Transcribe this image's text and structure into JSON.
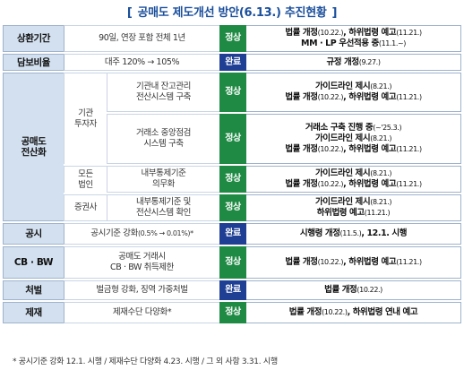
{
  "title": {
    "open_bracket": "[",
    "text": "공매도 제도개선 방안(6.13.) 추진현황",
    "close_bracket": "]"
  },
  "rows": {
    "r1": {
      "cat": "상환기간",
      "desc": "90일, 연장 포함 전체 1년",
      "status": "정상",
      "res_a": "법률 개정",
      "res_a_d": "(10.22.)",
      "res_a_sep": ", ",
      "res_b": "하위법령 예고",
      "res_b_d": "(11.21.)",
      "res_c": "MM · LP 우선적용 중",
      "res_c_d": "(11.1.~)"
    },
    "r2": {
      "cat": "담보비율",
      "desc": "대주 120% → 105%",
      "status": "완료",
      "res_a": "규정 개정",
      "res_a_d": "(9.27.)"
    },
    "r3": {
      "cat_l1": "공매도",
      "cat_l2": "전산화",
      "sub_l1": "기관",
      "sub_l2": "투자자",
      "desc_l1": "기관내 잔고관리",
      "desc_l2": "전산시스템 구축",
      "status": "정상",
      "res_a": "가이드라인 제시",
      "res_a_d": "(8.21.)",
      "res_b": "법률 개정",
      "res_b_d": "(10.22.)",
      "res_b_sep": ", ",
      "res_c": "하위법령 예고",
      "res_c_d": "(11.21.)"
    },
    "r4": {
      "desc_l1": "거래소 중앙점검",
      "desc_l2": "시스템 구축",
      "status": "정상",
      "res_a": "거래소 구축 진행 중",
      "res_a_d": "(~'25.3.)",
      "res_b": "가이드라인 제시",
      "res_b_d": "(8.21.)",
      "res_c": "법률 개정",
      "res_c_d": "(10.22.)",
      "res_c_sep": ", ",
      "res_d": "하위법령 예고",
      "res_d_d": "(11.21.)"
    },
    "r5": {
      "sub_l1": "모든",
      "sub_l2": "법인",
      "desc_l1": "내부통제기준",
      "desc_l2": "의무화",
      "status": "정상",
      "res_a": "가이드라인 제시",
      "res_a_d": "(8.21.)",
      "res_b": "법률 개정",
      "res_b_d": "(10.22.)",
      "res_b_sep": ", ",
      "res_c": "하위법령 예고",
      "res_c_d": "(11.21.)"
    },
    "r6": {
      "sub": "증권사",
      "desc_l1": "내부통제기준 및",
      "desc_l2": "전산시스템 확인",
      "status": "정상",
      "res_a": "가이드라인 제시",
      "res_a_d": "(8.21.)",
      "res_b": "하위법령 예고",
      "res_b_d": "(11.21.)"
    },
    "r7": {
      "cat": "공시",
      "desc_a": "공시기준 강화",
      "desc_b": "(0.5% → 0.01%)*",
      "status": "완료",
      "res_a": "시행령 개정",
      "res_a_d": "(11.5.)",
      "res_a_sep": ", ",
      "res_b": "12.1. 시행"
    },
    "r8": {
      "cat": "CB · BW",
      "desc_l1": "공매도 거래시",
      "desc_l2": "CB · BW 취득제한",
      "status": "정상",
      "res_a": "법률 개정",
      "res_a_d": "(10.22.)",
      "res_a_sep": ", ",
      "res_b": "하위법령 예고",
      "res_b_d": "(11.21.)"
    },
    "r9": {
      "cat": "처벌",
      "desc": "벌금형 강화, 징역 가중처벌",
      "status": "완료",
      "res_a": "법률 개정",
      "res_a_d": "(10.22.)"
    },
    "r10": {
      "cat": "제재",
      "desc": "제재수단 다양화*",
      "status": "정상",
      "res_a": "법률 개정",
      "res_a_d": "(10.22.)",
      "res_a_sep": ", ",
      "res_b": "하위법령 연내 예고"
    }
  },
  "footnote": "* 공시기준 강화 12.1. 시행 / 제재수단 다양화 4.23. 시행 / 그 외 사항 3.31. 시행",
  "colors": {
    "title": "#1b4f9c",
    "status_ok": "#1f8a44",
    "status_done": "#1e3f93",
    "category_bg": "#d3e0ef"
  }
}
